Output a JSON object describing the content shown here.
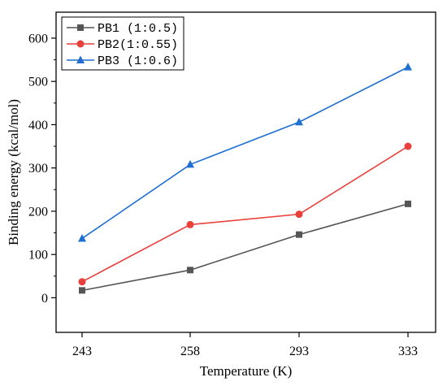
{
  "chart_data": {
    "type": "line",
    "categories": [
      "243",
      "258",
      "293",
      "333"
    ],
    "xlabel": "Temperature (K)",
    "ylabel": "Binding energy (kcal/mol)",
    "ylim": [
      -80,
      660
    ],
    "yticks": [
      0,
      100,
      200,
      300,
      400,
      500,
      600
    ],
    "grid": false,
    "legend_position": "top-left",
    "series": [
      {
        "name": "PB1 (1:0.5)",
        "color": "#555555",
        "marker": "square",
        "values": [
          17,
          64,
          146,
          217
        ]
      },
      {
        "name": "PB2(1:0.55)",
        "color": "#e8413c",
        "marker": "circle",
        "values": [
          37,
          169,
          193,
          350
        ]
      },
      {
        "name": "PB3 (1:0.6)",
        "color": "#1f6fd1",
        "marker": "triangle",
        "values": [
          137,
          308,
          406,
          533
        ]
      }
    ]
  }
}
